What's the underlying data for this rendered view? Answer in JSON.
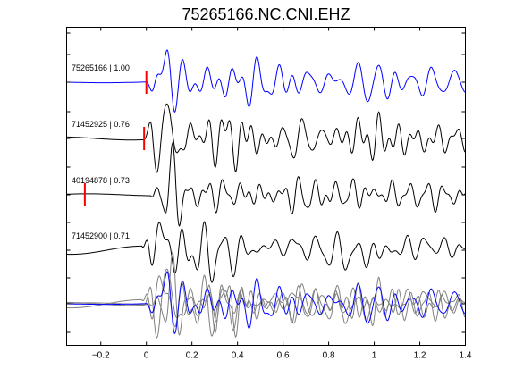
{
  "chart_data": {
    "type": "line",
    "title": "75265166.NC.CNI.EHZ",
    "xlabel": "",
    "ylabel": "",
    "xlim": [
      -0.35,
      1.4
    ],
    "xticks": [
      -0.2,
      0,
      0.2,
      0.4,
      0.6,
      0.8,
      1,
      1.2,
      1.4
    ],
    "xtick_labels": [
      "−0.2",
      "0",
      "0.2",
      "0.4",
      "0.6",
      "0.8",
      "1",
      "1.2",
      "1.4"
    ],
    "grid": false,
    "colors": {
      "primary_trace": "#0000ff",
      "secondary_trace": "#000000",
      "overlay_trace": "#808080",
      "pick_marker": "#ff0000"
    },
    "series": [
      {
        "name": "75265166 | 1.00",
        "label": "75265166 | 1.00",
        "pick_time": 0.0,
        "amplitude": 1.0
      },
      {
        "name": "71452925 | 0.76",
        "label": "71452925 | 0.76",
        "pick_time": -0.01,
        "amplitude": 0.95
      },
      {
        "name": "40194878 | 0.73",
        "label": "40194878 | 0.73",
        "pick_time": -0.27,
        "amplitude": 0.95
      },
      {
        "name": "71452900 | 0.71",
        "label": "71452900 | 0.71",
        "pick_time": null,
        "amplitude": 0.85
      }
    ],
    "overlay": {
      "traces": [
        "75265166 | 1.00",
        "71452925 | 0.76",
        "40194878 | 0.73",
        "71452900 | 0.71"
      ]
    }
  }
}
